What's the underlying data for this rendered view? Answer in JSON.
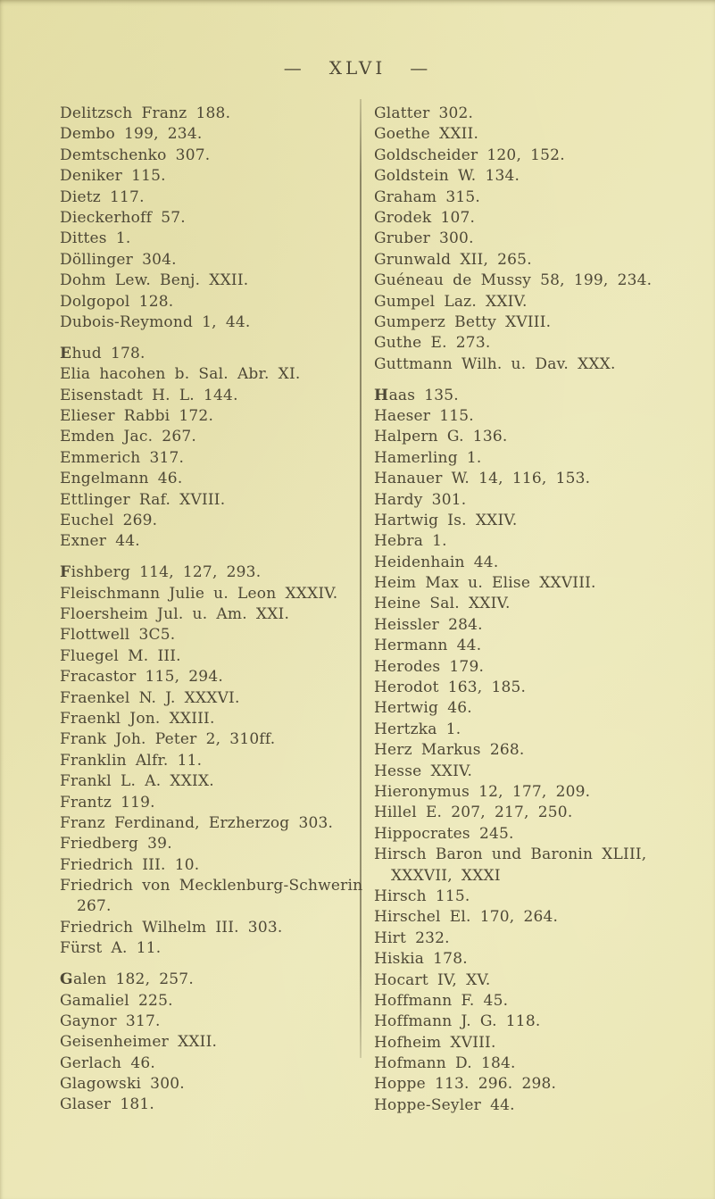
{
  "page": {
    "kind": "scanned-book-index-page",
    "header": {
      "left_dash": "—",
      "page_number": "XLVI",
      "right_dash": "—"
    }
  },
  "colors": {
    "paper": "#ebe6b4",
    "ink": "#4e4836",
    "divider": "#565037"
  },
  "columns": {
    "left": [
      {
        "t": "Delitzsch Franz 188."
      },
      {
        "t": "Dembo 199, 234."
      },
      {
        "t": "Demtschenko 307."
      },
      {
        "t": "Deniker 115."
      },
      {
        "t": "Dietz 117."
      },
      {
        "t": "Dieckerhoff 57."
      },
      {
        "t": "Dittes 1."
      },
      {
        "t": "Döllinger 304."
      },
      {
        "t": "Dohm Lew. Benj. XXII."
      },
      {
        "t": "Dolgopol 128."
      },
      {
        "t": "Dubois-Reymond 1, 44."
      },
      {
        "t": "Ehud 178.",
        "b": true,
        "g": true
      },
      {
        "t": "Elia hacohen b. Sal. Abr. XI."
      },
      {
        "t": "Eisenstadt H. L. 144."
      },
      {
        "t": "Elieser Rabbi 172."
      },
      {
        "t": "Emden Jac. 267."
      },
      {
        "t": "Emmerich 317."
      },
      {
        "t": "Engelmann 46."
      },
      {
        "t": "Ettlinger Raf. XVIII."
      },
      {
        "t": "Euchel 269."
      },
      {
        "t": "Exner 44."
      },
      {
        "t": "Fishberg 114, 127, 293.",
        "b": true,
        "g": true
      },
      {
        "t": "Fleischmann Julie u. Leon XXXIV."
      },
      {
        "t": "Floersheim Jul. u. Am. XXI."
      },
      {
        "t": "Flottwell 3C5."
      },
      {
        "t": "Fluegel M. III."
      },
      {
        "t": "Fracastor 115, 294."
      },
      {
        "t": "Fraenkel N. J. XXXVI."
      },
      {
        "t": "Fraenkl Jon. XXIII."
      },
      {
        "t": "Frank Joh. Peter 2, 310ff."
      },
      {
        "t": "Franklin Alfr. 11."
      },
      {
        "t": "Frankl L. A. XXIX."
      },
      {
        "t": "Frantz 119."
      },
      {
        "t": "Franz Ferdinand, Erzherzog 303."
      },
      {
        "t": "Friedberg 39."
      },
      {
        "t": "Friedrich III. 10."
      },
      {
        "t": "Friedrich von Mecklenburg-Schwerin"
      },
      {
        "t": "267.",
        "i": true
      },
      {
        "t": "Friedrich Wilhelm III. 303."
      },
      {
        "t": "Fürst A. 11."
      },
      {
        "t": "Galen 182, 257.",
        "b": true,
        "g": true
      },
      {
        "t": "Gamaliel 225."
      },
      {
        "t": "Gaynor 317."
      },
      {
        "t": "Geisenheimer XXII."
      },
      {
        "t": "Gerlach 46."
      },
      {
        "t": "Glagowski 300."
      },
      {
        "t": "Glaser 181."
      }
    ],
    "right": [
      {
        "t": "Glatter 302."
      },
      {
        "t": "Goethe XXII."
      },
      {
        "t": "Goldscheider 120, 152."
      },
      {
        "t": "Goldstein W. 134."
      },
      {
        "t": "Graham 315."
      },
      {
        "t": "Grodek 107."
      },
      {
        "t": "Gruber 300."
      },
      {
        "t": "Grunwald XII, 265."
      },
      {
        "t": "Guéneau de Mussy 58, 199, 234."
      },
      {
        "t": "Gumpel Laz. XXIV."
      },
      {
        "t": "Gumperz Betty XVIII."
      },
      {
        "t": "Guthe E. 273."
      },
      {
        "t": "Guttmann Wilh. u. Dav. XXX."
      },
      {
        "t": "Haas 135.",
        "b": true,
        "g": true
      },
      {
        "t": "Haeser 115."
      },
      {
        "t": "Halpern G. 136."
      },
      {
        "t": "Hamerling 1."
      },
      {
        "t": "Hanauer W. 14, 116, 153."
      },
      {
        "t": "Hardy 301."
      },
      {
        "t": "Hartwig Is. XXIV."
      },
      {
        "t": "Hebra 1."
      },
      {
        "t": "Heidenhain 44."
      },
      {
        "t": "Heim Max u. Elise XXVIII."
      },
      {
        "t": "Heine Sal. XXIV."
      },
      {
        "t": "Heissler 284."
      },
      {
        "t": "Hermann 44."
      },
      {
        "t": "Herodes 179."
      },
      {
        "t": "Herodot 163, 185."
      },
      {
        "t": "Hertwig 46."
      },
      {
        "t": "Hertzka 1."
      },
      {
        "t": "Herz Markus 268."
      },
      {
        "t": "Hesse XXIV."
      },
      {
        "t": "Hieronymus 12, 177, 209."
      },
      {
        "t": "Hillel E. 207, 217, 250."
      },
      {
        "t": "Hippocrates 245."
      },
      {
        "t": "Hirsch Baron und Baronin XLIII,"
      },
      {
        "t": "XXXVII, XXXI",
        "i": true
      },
      {
        "t": "Hirsch 115."
      },
      {
        "t": "Hirschel El. 170, 264."
      },
      {
        "t": "Hirt 232."
      },
      {
        "t": "Hiskia 178."
      },
      {
        "t": "Hocart IV, XV."
      },
      {
        "t": "Hoffmann F. 45."
      },
      {
        "t": "Hoffmann J. G. 118."
      },
      {
        "t": "Hofheim XVIII."
      },
      {
        "t": "Hofmann D. 184."
      },
      {
        "t": "Hoppe 113. 296. 298."
      },
      {
        "t": "Hoppe-Seyler 44."
      }
    ]
  }
}
